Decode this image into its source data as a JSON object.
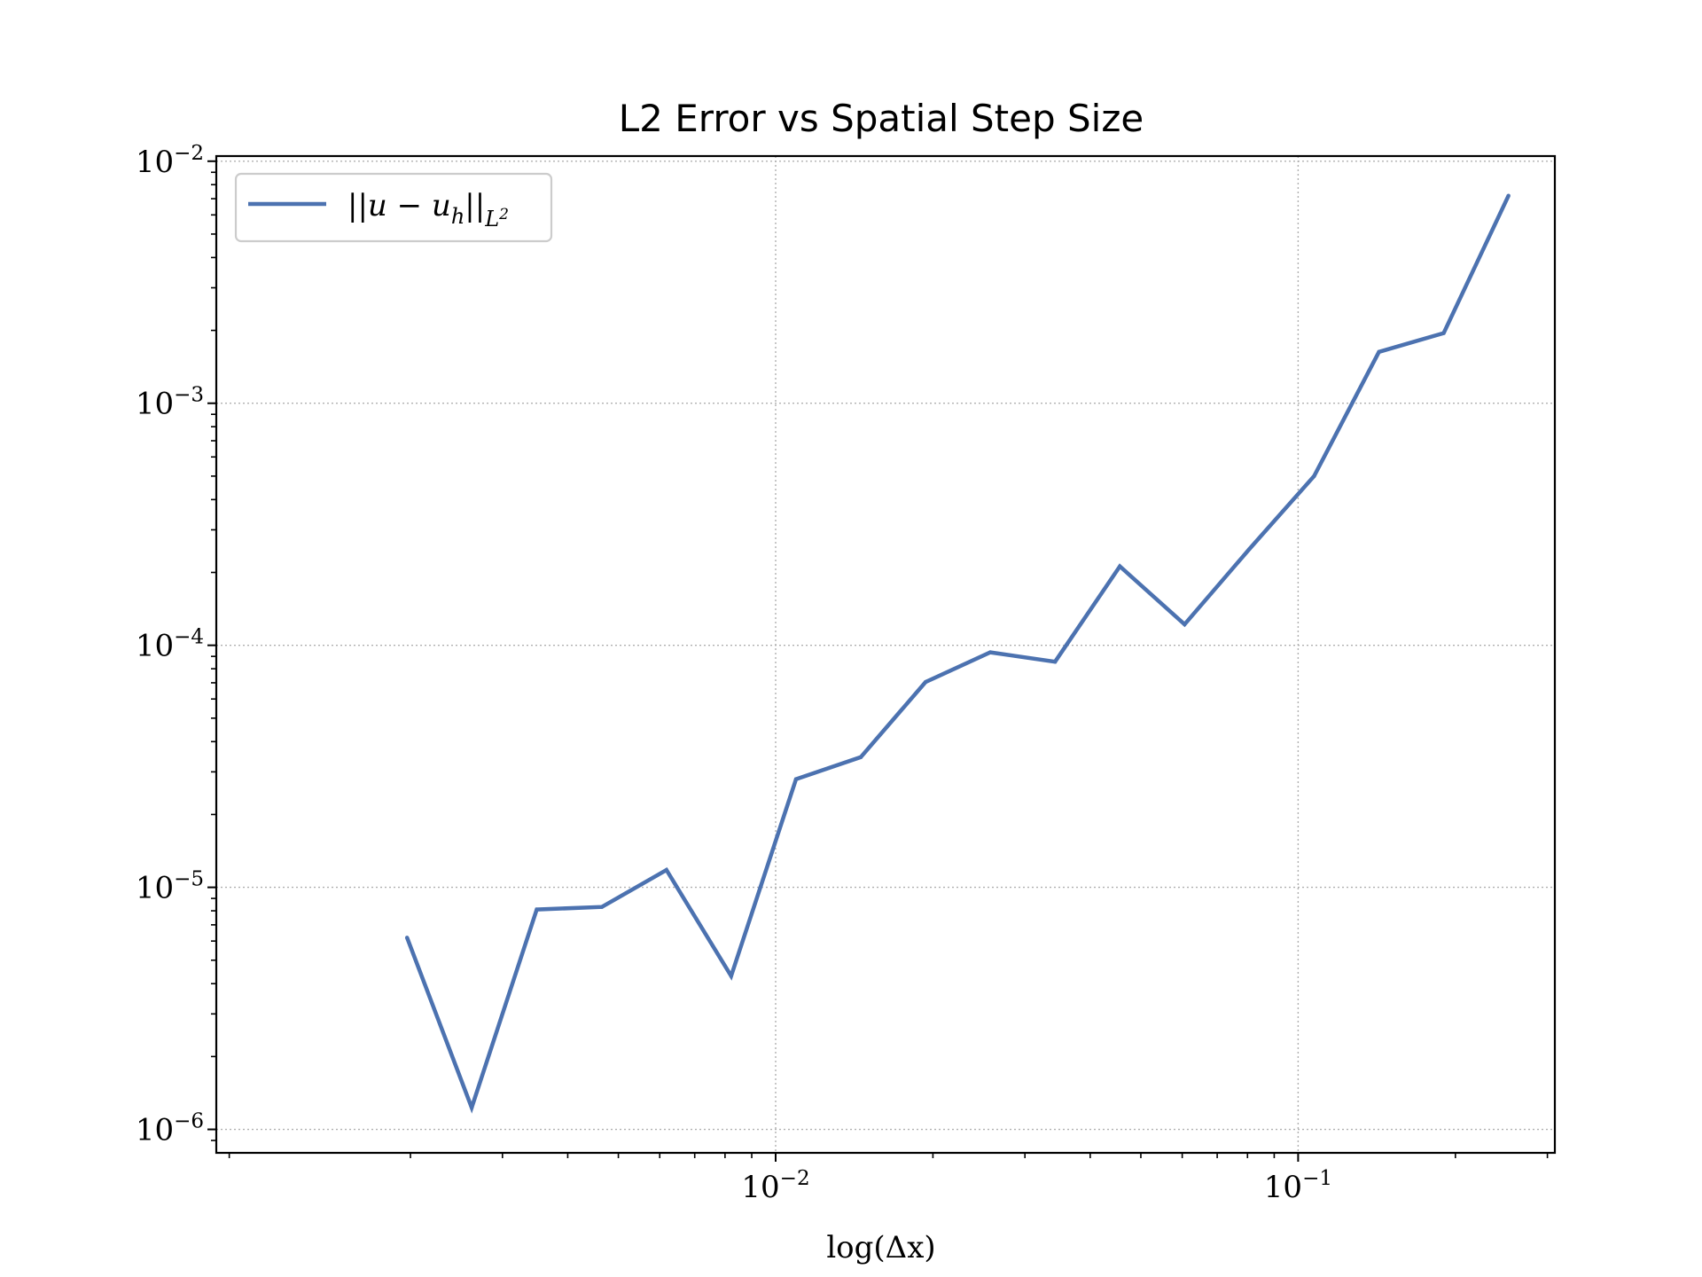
{
  "chart_data": {
    "type": "line",
    "title": "L2 Error vs Spatial Step Size",
    "xlabel": "log(Δx)",
    "ylabel": "",
    "xscale": "log",
    "yscale": "log",
    "xlim": [
      0.00085,
      0.31
    ],
    "ylim": [
      8e-07,
      0.0105
    ],
    "xticks": [
      {
        "value": 0.01,
        "base": "10",
        "exp": "−2"
      },
      {
        "value": 0.1,
        "base": "10",
        "exp": "−1"
      }
    ],
    "yticks": [
      {
        "value": 1e-06,
        "base": "10",
        "exp": "−6"
      },
      {
        "value": 1e-05,
        "base": "10",
        "exp": "−5"
      },
      {
        "value": 0.0001,
        "base": "10",
        "exp": "−4"
      },
      {
        "value": 0.001,
        "base": "10",
        "exp": "−3"
      },
      {
        "value": 0.01,
        "base": "10",
        "exp": "−2"
      }
    ],
    "grid": true,
    "legend_position": "top-left",
    "series": [
      {
        "name": "||u − u_h||_{L²}",
        "color": "#4c72b0",
        "x": [
          0.00197,
          0.00262,
          0.00349,
          0.00465,
          0.00618,
          0.00822,
          0.01094,
          0.01455,
          0.01936,
          0.02575,
          0.03426,
          0.04558,
          0.06063,
          0.08066,
          0.1073,
          0.1428,
          0.1899,
          0.2527
        ],
        "y": [
          6.2e-06,
          1.23e-06,
          8.1e-06,
          8.3e-06,
          1.18e-05,
          4.3e-06,
          2.8e-05,
          3.45e-05,
          7.05e-05,
          9.35e-05,
          8.55e-05,
          0.000212,
          0.000122,
          0.00025,
          0.0005,
          0.00163,
          0.00195,
          0.0072
        ]
      }
    ],
    "legend": {
      "main": "||u − u",
      "sub": "h",
      "tail": "||",
      "tail_sub": "L",
      "tail_sup": "2"
    }
  }
}
